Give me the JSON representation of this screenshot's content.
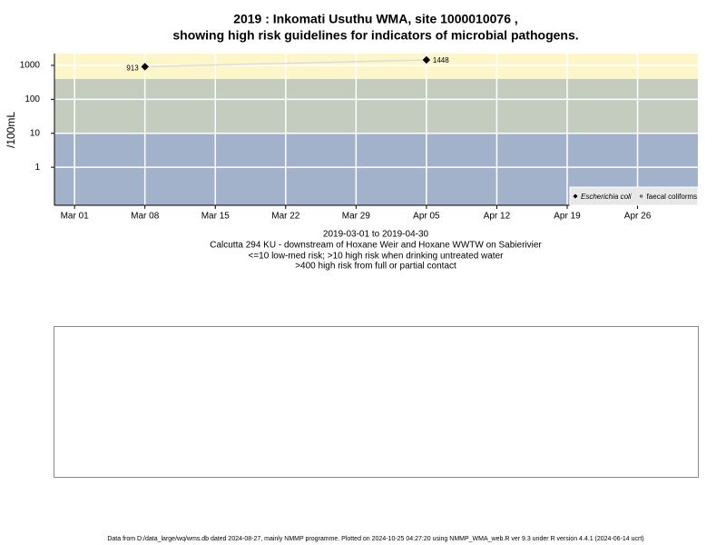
{
  "chart_data": {
    "type": "scatter",
    "title": "2019 : Inkomati Usuthu WMA, site 1000010076 ,",
    "subtitle": "showing high risk guidelines for indicators of microbial pathogens.",
    "x_label": "2019-03-01 to 2019-04-30",
    "notes": [
      "Calcutta 294 KU - downstream of Hoxane Weir and Hoxane WWTW on Sabierivier",
      "<=10 low-med risk; >10 high risk when drinking untreated water",
      ">400 high risk from full or partial contact"
    ],
    "y_label": "/100mL",
    "log_y": true,
    "ylim": [
      0.076,
      2220
    ],
    "yticks": [
      1,
      10,
      100,
      1000
    ],
    "xlim": [
      "2019-02-27",
      "2019-05-02"
    ],
    "xticks": [
      {
        "value": "2019-03-01",
        "label": "Mar 01"
      },
      {
        "value": "2019-03-08",
        "label": "Mar 08"
      },
      {
        "value": "2019-03-15",
        "label": "Mar 15"
      },
      {
        "value": "2019-03-22",
        "label": "Mar 22"
      },
      {
        "value": "2019-03-29",
        "label": "Mar 29"
      },
      {
        "value": "2019-04-05",
        "label": "Apr 05"
      },
      {
        "value": "2019-04-12",
        "label": "Apr 12"
      },
      {
        "value": "2019-04-19",
        "label": "Apr 19"
      },
      {
        "value": "2019-04-26",
        "label": "Apr 26"
      }
    ],
    "grid": true,
    "bands": [
      {
        "to": 10,
        "color": "#a3b2cb"
      },
      {
        "from": 10,
        "to": 400,
        "color": "#c4cbbf"
      },
      {
        "from": 400,
        "color": "#fdf6c9"
      }
    ],
    "series": [
      {
        "name": "Escherichia coli",
        "color": "#000000",
        "marker": "diamond",
        "x": [
          "2019-03-08",
          "2019-04-05"
        ],
        "values": [
          913,
          1448
        ]
      },
      {
        "name": "faecal coliforms",
        "color": "#000000",
        "marker": "circle",
        "x": [],
        "values": []
      }
    ],
    "legend": "bottom-right",
    "footer": "Data from D:/data_large/wq/wms.db dated 2024-08-27, mainly NMMP programme. Plotted on 2024-10-25 04:27:20 using NMMP_WMA_web.R ver 9.3 under R version 4.4.1 (2024-06-14 ucrt)"
  }
}
